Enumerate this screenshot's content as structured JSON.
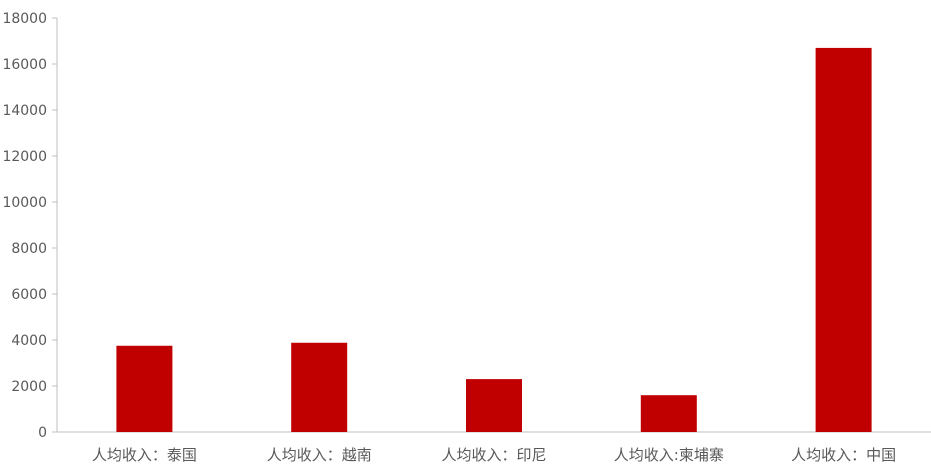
{
  "chart_data": {
    "type": "bar",
    "categories": [
      "人均收入：泰国",
      "人均收入：越南",
      "人均收入：印尼",
      "人均收入:柬埔寨",
      "人均收入：中国"
    ],
    "values": [
      3750,
      3880,
      2300,
      1600,
      16700
    ],
    "ylim": [
      0,
      18000
    ],
    "yticks": [
      0,
      2000,
      4000,
      6000,
      8000,
      10000,
      12000,
      14000,
      16000,
      18000
    ],
    "bar_color": "#c00000",
    "axis_color": "#bfbfbf",
    "grid": false,
    "legend": "none"
  }
}
